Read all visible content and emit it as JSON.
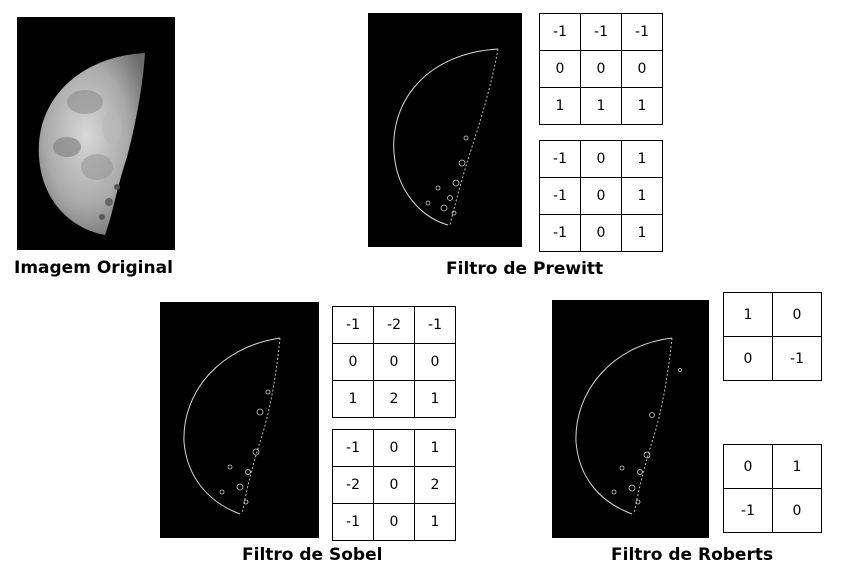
{
  "captions": {
    "original": "Imagem Original",
    "prewitt": "Filtro de Prewitt",
    "sobel": "Filtro de Sobel",
    "roberts": "Filtro de Roberts"
  },
  "kernels": {
    "prewitt": [
      [
        [
          "-1",
          "-1",
          "-1"
        ],
        [
          "0",
          "0",
          "0"
        ],
        [
          "1",
          "1",
          "1"
        ]
      ],
      [
        [
          "-1",
          "0",
          "1"
        ],
        [
          "-1",
          "0",
          "1"
        ],
        [
          "-1",
          "0",
          "1"
        ]
      ]
    ],
    "sobel": [
      [
        [
          "-1",
          "-2",
          "-1"
        ],
        [
          "0",
          "0",
          "0"
        ],
        [
          "1",
          "2",
          "1"
        ]
      ],
      [
        [
          "-1",
          "0",
          "1"
        ],
        [
          "-2",
          "0",
          "2"
        ],
        [
          "-1",
          "0",
          "1"
        ]
      ]
    ],
    "roberts": [
      [
        [
          "1",
          "0"
        ],
        [
          "0",
          "-1"
        ]
      ],
      [
        [
          "0",
          "1"
        ],
        [
          "-1",
          "0"
        ]
      ]
    ]
  }
}
